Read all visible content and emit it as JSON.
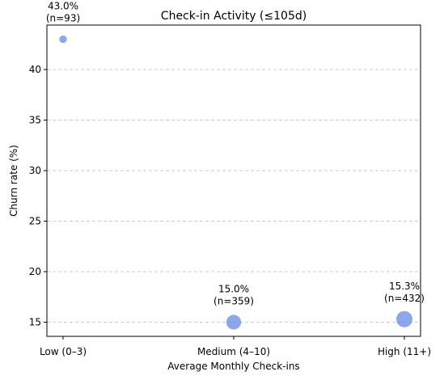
{
  "chart_data": {
    "type": "scatter",
    "title": "Check-in Activity (≤105d)",
    "xlabel": "Average Monthly Check-ins",
    "ylabel": "Churn rate (%)",
    "categories": [
      "Low (0–3)",
      "Medium (4–10)",
      "High (11+)"
    ],
    "values": [
      43.0,
      15.0,
      15.3
    ],
    "counts": [
      93,
      359,
      432
    ],
    "data_labels": [
      [
        "43.0%",
        "(n=93)"
      ],
      [
        "15.0%",
        "(n=359)"
      ],
      [
        "15.3%",
        "(n=432)"
      ]
    ],
    "yticks": [
      15,
      20,
      25,
      30,
      35,
      40
    ],
    "ylim": [
      13.6,
      44.4
    ],
    "grid": "y, dashed",
    "marker_color": "#6b8fe6"
  }
}
